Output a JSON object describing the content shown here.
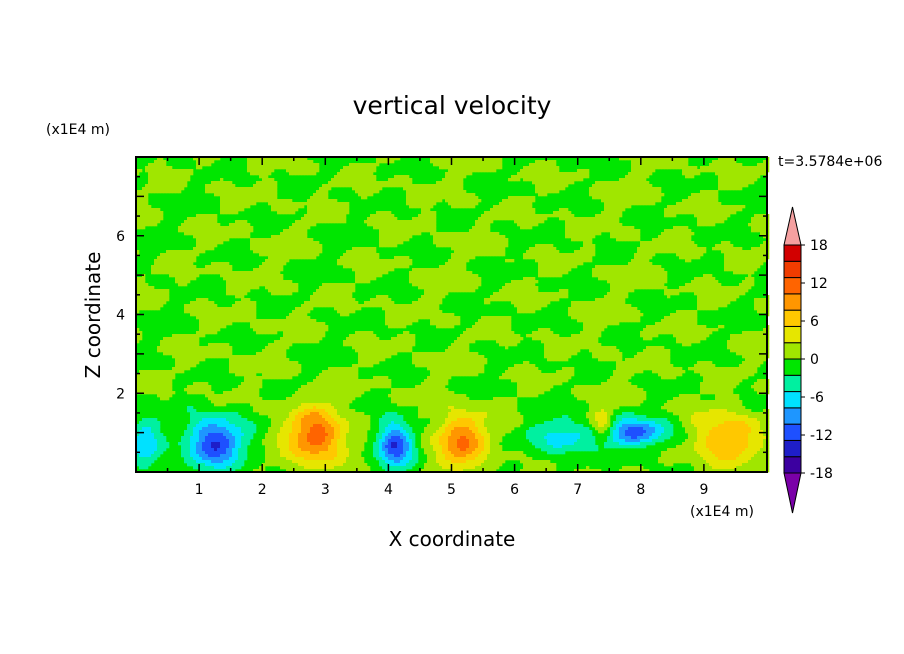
{
  "chart_data": {
    "type": "heatmap",
    "title": "vertical velocity",
    "xlabel": "X coordinate",
    "ylabel": "Z coordinate",
    "x_unit": "(x1E4 m)",
    "y_unit": "(x1E4 m)",
    "time_label": "t=3.5784e+06",
    "xlim": [
      0,
      10
    ],
    "ylim": [
      0,
      8
    ],
    "x_ticks": [
      1,
      2,
      3,
      4,
      5,
      6,
      7,
      8,
      9
    ],
    "y_ticks": [
      2,
      4,
      6
    ],
    "colorbar": {
      "levels": [
        -21,
        -18,
        -15,
        -12,
        -9,
        -6,
        -3,
        0,
        3,
        6,
        9,
        12,
        15,
        18,
        21
      ],
      "tick_labels": [
        "18",
        "12",
        "6",
        "0",
        "-6",
        "-12",
        "-18"
      ],
      "tick_values": [
        18,
        12,
        6,
        0,
        -6,
        -12,
        -18
      ],
      "colors": [
        "#7a00a8",
        "#3c00a0",
        "#1e1ec8",
        "#1e50ff",
        "#1e96ff",
        "#00e1ff",
        "#00f0a0",
        "#00e600",
        "#a0e600",
        "#e6e600",
        "#ffc800",
        "#ff9600",
        "#ff6400",
        "#f03c00",
        "#d20000",
        "#f5a0a0"
      ],
      "extend": "both"
    },
    "features": [
      {
        "x": 0.15,
        "z": 0.7,
        "w": -3,
        "sx": 0.25,
        "sz": 0.7,
        "amp": 8
      },
      {
        "x": 1.25,
        "z": 0.75,
        "w": -15,
        "sx": 0.45,
        "sz": 0.65
      },
      {
        "x": 2.85,
        "z": 0.9,
        "w": 14,
        "sx": 0.45,
        "sz": 0.7
      },
      {
        "x": 4.1,
        "z": 0.7,
        "w": -15,
        "sx": 0.28,
        "sz": 0.6
      },
      {
        "x": 5.15,
        "z": 0.8,
        "w": 12,
        "sx": 0.4,
        "sz": 0.7
      },
      {
        "x": 6.75,
        "z": 0.9,
        "w": -8,
        "sx": 0.45,
        "sz": 0.45
      },
      {
        "x": 7.4,
        "z": 1.2,
        "w": 8,
        "sx": 0.18,
        "sz": 0.35
      },
      {
        "x": 7.9,
        "z": 1.0,
        "w": -13,
        "sx": 0.55,
        "sz": 0.35
      },
      {
        "x": 9.35,
        "z": 0.85,
        "w": 10,
        "sx": 0.5,
        "sz": 0.65
      }
    ]
  }
}
